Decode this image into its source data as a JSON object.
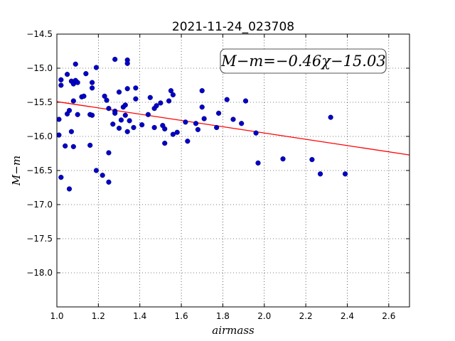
{
  "chart_data": {
    "type": "scatter",
    "title": "2021-11-24_023708",
    "xlabel": "airmass",
    "ylabel": "M−m",
    "xlim": [
      1.0,
      2.7
    ],
    "ylim": [
      -18.5,
      -14.5
    ],
    "y_inverted": true,
    "grid": true,
    "x_ticks": [
      "1.0",
      "1.2",
      "1.4",
      "1.6",
      "1.8",
      "2.0",
      "2.2",
      "2.4",
      "2.6"
    ],
    "y_ticks": [
      "−14.5",
      "−15.0",
      "−15.5",
      "−16.0",
      "−16.5",
      "−17.0",
      "−17.5",
      "−18.0"
    ],
    "annotation": "M−m=−0.46χ−15.03",
    "fit_line": {
      "slope": -0.46,
      "intercept": -15.03,
      "color": "#ff0000"
    },
    "point_color": "#0000cc",
    "points": [
      [
        1.01,
        -15.75
      ],
      [
        1.01,
        -15.98
      ],
      [
        1.02,
        -15.17
      ],
      [
        1.02,
        -15.25
      ],
      [
        1.02,
        -16.6
      ],
      [
        1.04,
        -16.14
      ],
      [
        1.05,
        -15.09
      ],
      [
        1.05,
        -15.67
      ],
      [
        1.06,
        -15.62
      ],
      [
        1.06,
        -16.77
      ],
      [
        1.07,
        -15.19
      ],
      [
        1.07,
        -15.93
      ],
      [
        1.08,
        -15.23
      ],
      [
        1.08,
        -15.48
      ],
      [
        1.08,
        -16.15
      ],
      [
        1.09,
        -14.94
      ],
      [
        1.09,
        -15.18
      ],
      [
        1.1,
        -15.21
      ],
      [
        1.1,
        -15.68
      ],
      [
        1.12,
        -15.42
      ],
      [
        1.13,
        -15.41
      ],
      [
        1.14,
        -15.08
      ],
      [
        1.16,
        -15.68
      ],
      [
        1.16,
        -16.13
      ],
      [
        1.17,
        -15.21
      ],
      [
        1.17,
        -15.29
      ],
      [
        1.17,
        -15.69
      ],
      [
        1.19,
        -16.5
      ],
      [
        1.19,
        -14.99
      ],
      [
        1.22,
        -16.57
      ],
      [
        1.23,
        -15.41
      ],
      [
        1.24,
        -15.47
      ],
      [
        1.25,
        -15.59
      ],
      [
        1.25,
        -16.24
      ],
      [
        1.25,
        -16.67
      ],
      [
        1.27,
        -15.82
      ],
      [
        1.28,
        -14.87
      ],
      [
        1.28,
        -15.63
      ],
      [
        1.28,
        -15.66
      ],
      [
        1.3,
        -15.35
      ],
      [
        1.3,
        -15.88
      ],
      [
        1.31,
        -15.76
      ],
      [
        1.32,
        -15.57
      ],
      [
        1.33,
        -15.54
      ],
      [
        1.33,
        -15.69
      ],
      [
        1.34,
        -15.3
      ],
      [
        1.34,
        -15.93
      ],
      [
        1.34,
        -14.88
      ],
      [
        1.34,
        -14.93
      ],
      [
        1.35,
        -15.77
      ],
      [
        1.37,
        -15.87
      ],
      [
        1.38,
        -15.29
      ],
      [
        1.38,
        -15.45
      ],
      [
        1.41,
        -15.83
      ],
      [
        1.44,
        -15.68
      ],
      [
        1.45,
        -15.43
      ],
      [
        1.47,
        -15.87
      ],
      [
        1.47,
        -15.59
      ],
      [
        1.48,
        -15.55
      ],
      [
        1.5,
        -15.51
      ],
      [
        1.51,
        -15.84
      ],
      [
        1.52,
        -15.89
      ],
      [
        1.52,
        -16.1
      ],
      [
        1.54,
        -15.48
      ],
      [
        1.55,
        -15.33
      ],
      [
        1.56,
        -15.39
      ],
      [
        1.56,
        -15.97
      ],
      [
        1.58,
        -15.94
      ],
      [
        1.62,
        -15.79
      ],
      [
        1.63,
        -16.07
      ],
      [
        1.67,
        -15.81
      ],
      [
        1.68,
        -15.9
      ],
      [
        1.7,
        -15.33
      ],
      [
        1.7,
        -15.57
      ],
      [
        1.71,
        -15.74
      ],
      [
        1.77,
        -15.87
      ],
      [
        1.78,
        -15.66
      ],
      [
        1.82,
        -15.46
      ],
      [
        1.85,
        -15.75
      ],
      [
        1.89,
        -15.81
      ],
      [
        1.91,
        -15.48
      ],
      [
        1.96,
        -15.95
      ],
      [
        1.97,
        -16.39
      ],
      [
        2.09,
        -16.33
      ],
      [
        2.23,
        -16.34
      ],
      [
        2.27,
        -16.55
      ],
      [
        2.32,
        -15.72
      ],
      [
        2.39,
        -16.55
      ]
    ]
  }
}
